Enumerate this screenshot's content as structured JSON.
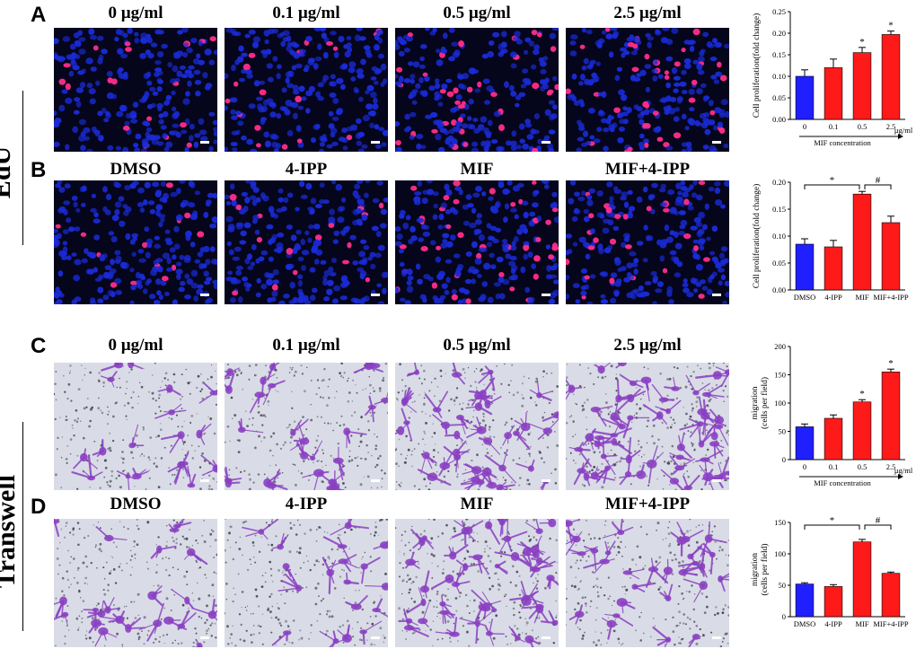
{
  "figure": {
    "panels": {
      "A": "A",
      "B": "B",
      "C": "C",
      "D": "D"
    },
    "side_labels": {
      "edu": "EdU",
      "transwell": "Transwell"
    },
    "row_titles": {
      "A": [
        "0 µg/ml",
        "0.1 µg/ml",
        "0.5 µg/ml",
        "2.5 µg/ml"
      ],
      "B": [
        "DMSO",
        "4-IPP",
        "MIF",
        "MIF+4-IPP"
      ],
      "C": [
        "0 µg/ml",
        "0.1 µg/ml",
        "0.5 µg/ml",
        "2.5 µg/ml"
      ],
      "D": [
        "DMSO",
        "4-IPP",
        "MIF",
        "MIF+4-IPP"
      ]
    },
    "colors": {
      "blue": "#1f1fff",
      "red": "#ff1a1a",
      "edu_bg": "#05051c",
      "nuclei": "#1a2bd6",
      "edu_pos": "#ff2d8a",
      "tw_bg": "#d9dce6",
      "cell": "#8a3fc2"
    }
  },
  "chart_data": [
    {
      "id": "A",
      "type": "bar",
      "categories": [
        "0",
        "0.1",
        "0.5",
        "2.5"
      ],
      "values": [
        0.1,
        0.12,
        0.155,
        0.197
      ],
      "errors": [
        0.015,
        0.02,
        0.012,
        0.008
      ],
      "bar_colors": [
        "#1f1fff",
        "#ff1a1a",
        "#ff1a1a",
        "#ff1a1a"
      ],
      "ylabel": "Cell proliferation(fold change)",
      "xlabel": "MIF concentration",
      "x_unit": "µg/ml",
      "ylim": [
        0,
        0.25
      ],
      "yticks": [
        0,
        0.05,
        0.1,
        0.15,
        0.2,
        0.25
      ],
      "ytick_labels": [
        "0.00",
        "0.05",
        "0.10",
        "0.15",
        "0.20",
        "0.25"
      ],
      "stars": [
        "",
        "",
        "*",
        "*"
      ]
    },
    {
      "id": "B",
      "type": "bar",
      "categories": [
        "DMSO",
        "4-IPP",
        "MIF",
        "MIF+4-IPP"
      ],
      "values": [
        0.085,
        0.08,
        0.178,
        0.125
      ],
      "errors": [
        0.01,
        0.012,
        0.005,
        0.012
      ],
      "bar_colors": [
        "#1f1fff",
        "#ff1a1a",
        "#ff1a1a",
        "#ff1a1a"
      ],
      "ylabel": "Cell proliferation(fold change)",
      "ylim": [
        0,
        0.2
      ],
      "yticks": [
        0,
        0.05,
        0.1,
        0.15,
        0.2
      ],
      "ytick_labels": [
        "0.00",
        "0.05",
        "0.10",
        "0.15",
        "0.20"
      ],
      "brackets": [
        {
          "from": 0,
          "to": 2,
          "label": "*"
        },
        {
          "from": 2,
          "to": 3,
          "label": "#"
        }
      ]
    },
    {
      "id": "C",
      "type": "bar",
      "categories": [
        "0",
        "0.1",
        "0.5",
        "2.5"
      ],
      "values": [
        58,
        73,
        102,
        155
      ],
      "errors": [
        5,
        6,
        4,
        5
      ],
      "bar_colors": [
        "#1f1fff",
        "#ff1a1a",
        "#ff1a1a",
        "#ff1a1a"
      ],
      "ylabel": "migration\n(cells per field)",
      "xlabel": "MIF concentration",
      "x_unit": "µg/ml",
      "ylim": [
        0,
        200
      ],
      "yticks": [
        0,
        50,
        100,
        150,
        200
      ],
      "ytick_labels": [
        "0",
        "50",
        "100",
        "150",
        "200"
      ],
      "stars": [
        "",
        "",
        "*",
        "*"
      ]
    },
    {
      "id": "D",
      "type": "bar",
      "categories": [
        "DMSO",
        "4-IPP",
        "MIF",
        "MIF+4-IPP"
      ],
      "values": [
        52,
        48,
        119,
        69
      ],
      "errors": [
        2,
        3,
        4,
        2
      ],
      "bar_colors": [
        "#1f1fff",
        "#ff1a1a",
        "#ff1a1a",
        "#ff1a1a"
      ],
      "ylabel": "migration\n(cells per field)",
      "ylim": [
        0,
        150
      ],
      "yticks": [
        0,
        50,
        100,
        150
      ],
      "ytick_labels": [
        "0",
        "50",
        "100",
        "150"
      ],
      "brackets": [
        {
          "from": 0,
          "to": 2,
          "label": "*"
        },
        {
          "from": 2,
          "to": 3,
          "label": "#"
        }
      ]
    }
  ]
}
